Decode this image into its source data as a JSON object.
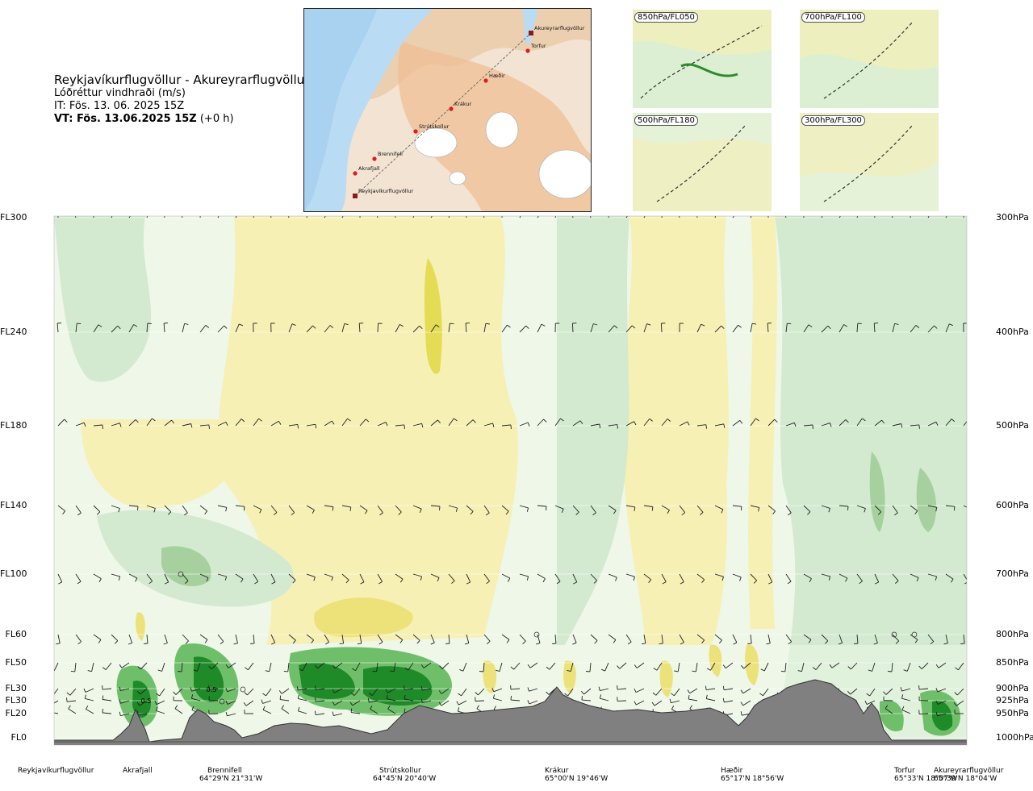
{
  "header": {
    "title": "Reykjavíkurflugvöllur - Akureyrarflugvöllur",
    "subtitle": "Lóðréttur vindhraði (m/s)",
    "init_time": "IT: Fös. 13. 06. 2025 15Z",
    "valid_prefix": "VT: Fös. 13.06.2025 15Z",
    "valid_suffix": "(+0 h)"
  },
  "route_map": {
    "points": [
      "Reykjavíkurflugvöllur",
      "Akrafjall",
      "Brennifell",
      "Strútskollur",
      "Krákur",
      "Hæðir",
      "Torfur",
      "Akureyrarflugvöllur"
    ]
  },
  "mini_maps": [
    {
      "label": "850hPa/FL050"
    },
    {
      "label": "700hPa/FL100"
    },
    {
      "label": "500hPa/FL180"
    },
    {
      "label": "300hPa/FL300"
    }
  ],
  "chart_data": {
    "type": "heatmap",
    "title": "Lóðréttur vindhraði (m/s)",
    "left_axis_labels": [
      "FL300",
      "FL240",
      "FL180",
      "FL140",
      "FL100",
      "FL60",
      "FL50",
      "FL30",
      "FL30",
      "FL20",
      "FL0"
    ],
    "right_axis_labels": [
      "300hPa",
      "400hPa",
      "500hPa",
      "600hPa",
      "700hPa",
      "800hPa",
      "850hPa",
      "900hPa",
      "925hPa",
      "950hPa",
      "1000hPa"
    ],
    "pressure_levels_hPa": [
      300,
      400,
      500,
      600,
      700,
      800,
      850,
      900,
      925,
      950,
      1000
    ],
    "annotations": [
      "0.5",
      "0.5"
    ],
    "x_points": [
      {
        "name": "Reykjavíkurflugvöllur",
        "coord": ""
      },
      {
        "name": "Akrafjall",
        "coord": ""
      },
      {
        "name": "Brennifell",
        "coord": "64°29'N 21°31'W"
      },
      {
        "name": "Strútskollur",
        "coord": "64°45'N 20°40'W"
      },
      {
        "name": "Krákur",
        "coord": "65°00'N 19°46'W"
      },
      {
        "name": "Hæðir",
        "coord": "65°17'N 18°56'W"
      },
      {
        "name": "Torfur",
        "coord": "65°33'N 18°07'W"
      },
      {
        "name": "Akureyrarflugvöllur",
        "coord": "65°39'N 18°04'W"
      }
    ],
    "colors": {
      "strong_up": "#1e8a28",
      "up": "#6fbf6a",
      "weak_up": "#bfe0b4",
      "neutral": "#eef7e8",
      "weak_down": "#f6f0b4",
      "down": "#ede27a",
      "terrain": "#808080"
    }
  }
}
